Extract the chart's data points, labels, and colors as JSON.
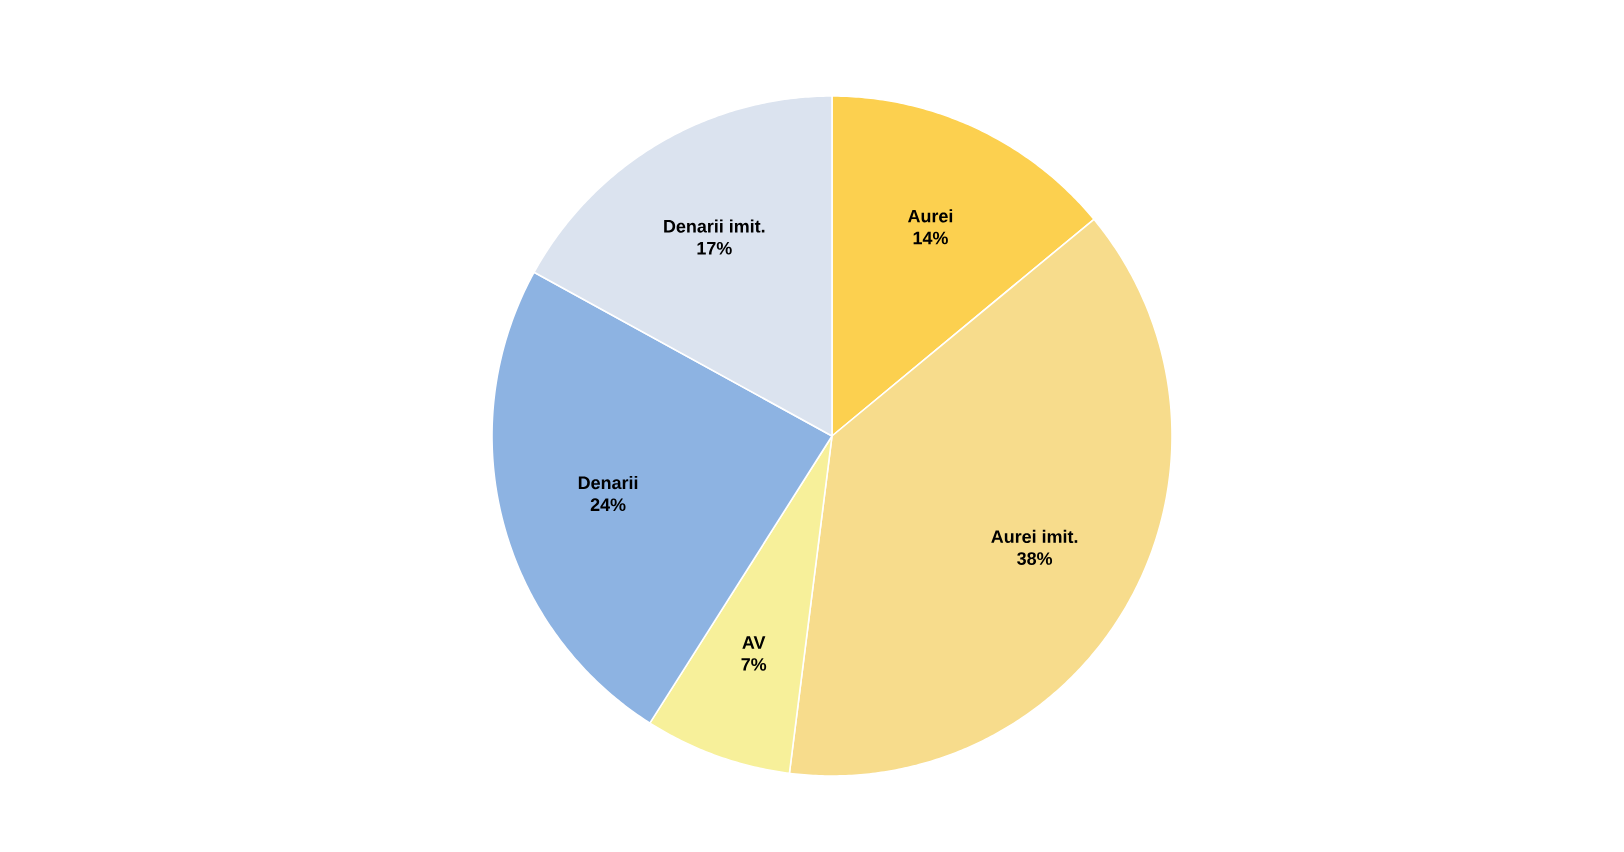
{
  "chart_data": {
    "type": "pie",
    "categories": [
      "Aurei",
      "Aurei imit.",
      "AV",
      "Denarii",
      "Denarii imit."
    ],
    "values": [
      14,
      38,
      7,
      24,
      17
    ],
    "value_labels": [
      "14%",
      "38%",
      "7%",
      "24%",
      "17%"
    ],
    "colors": [
      "#fcd04f",
      "#f7dc8c",
      "#f7f09a",
      "#8db3e2",
      "#dbe3ef"
    ]
  }
}
